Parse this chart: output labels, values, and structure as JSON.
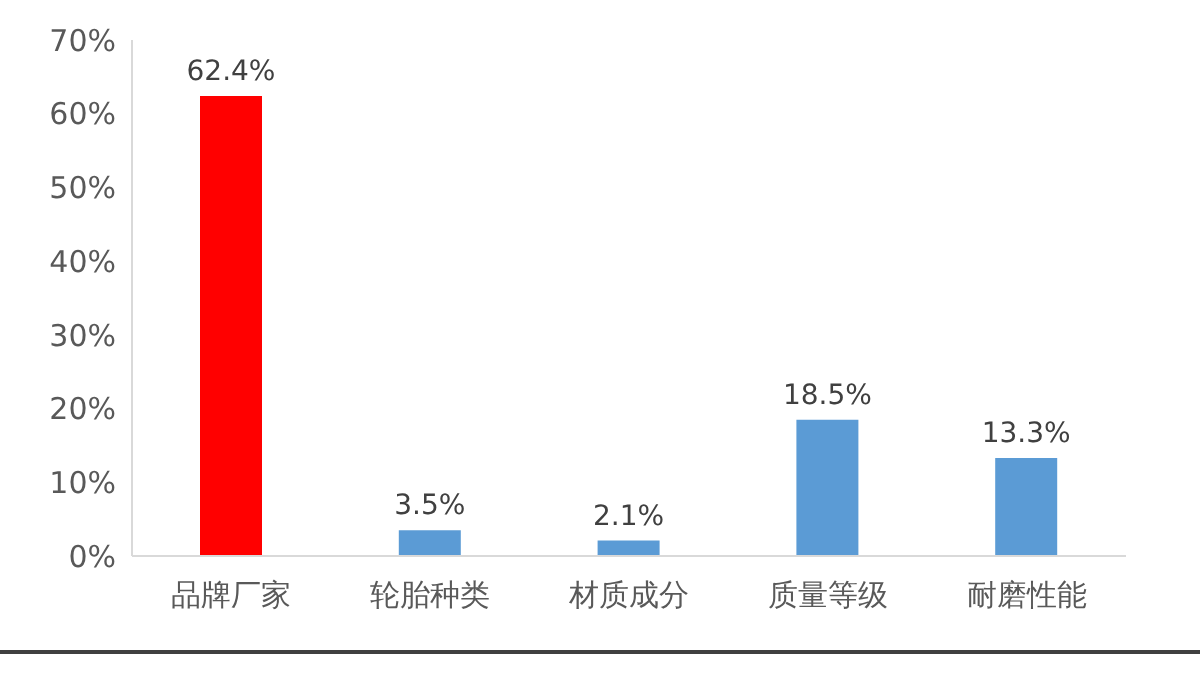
{
  "chart_data": {
    "type": "bar",
    "categories": [
      "品牌厂家",
      "轮胎种类",
      "材质成分",
      "质量等级",
      "耐磨性能"
    ],
    "values": [
      62.4,
      3.5,
      2.1,
      18.5,
      13.3
    ],
    "colors": [
      "#ff0000",
      "#5b9bd5",
      "#5b9bd5",
      "#5b9bd5",
      "#5b9bd5"
    ],
    "value_labels": [
      "62.4%",
      "3.5%",
      "2.1%",
      "18.5%",
      "13.3%"
    ],
    "ylim": [
      0,
      70
    ],
    "yticks": [
      {
        "value": 0,
        "label": "0%"
      },
      {
        "value": 10,
        "label": "10%"
      },
      {
        "value": 20,
        "label": "20%"
      },
      {
        "value": 30,
        "label": "30%"
      },
      {
        "value": 40,
        "label": "40%"
      },
      {
        "value": 50,
        "label": "50%"
      },
      {
        "value": 60,
        "label": "60%"
      },
      {
        "value": 70,
        "label": "70%"
      }
    ],
    "grid": false,
    "legend": false
  }
}
